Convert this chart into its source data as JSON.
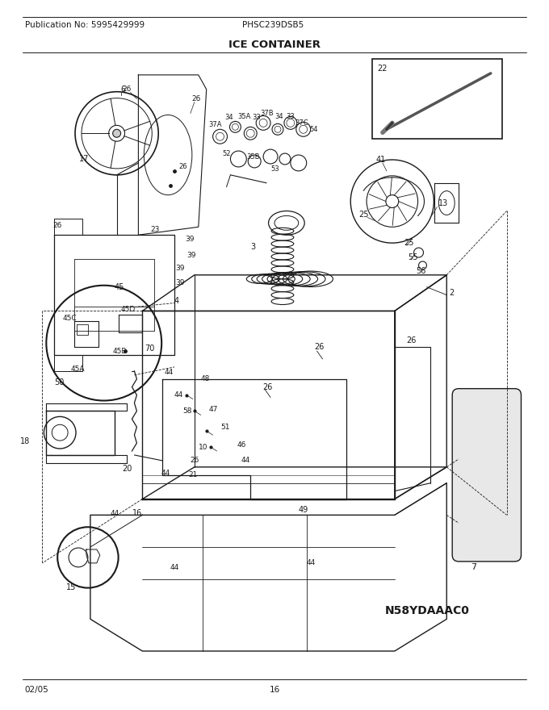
{
  "title": "ICE CONTAINER",
  "publication": "Publication No: 5995429999",
  "model": "PHSC239DSB5",
  "image_code": "N58YDAAAC0",
  "date": "02/05",
  "page": "16",
  "bg_color": "#ffffff",
  "line_color": "#1a1a1a",
  "gray_color": "#888888",
  "light_gray": "#cccccc",
  "figsize": [
    6.8,
    8.8
  ],
  "dpi": 100,
  "header_fontsize": 7.5,
  "title_fontsize": 9.5,
  "footer_fontsize": 7.5,
  "label_fontsize": 7.0
}
